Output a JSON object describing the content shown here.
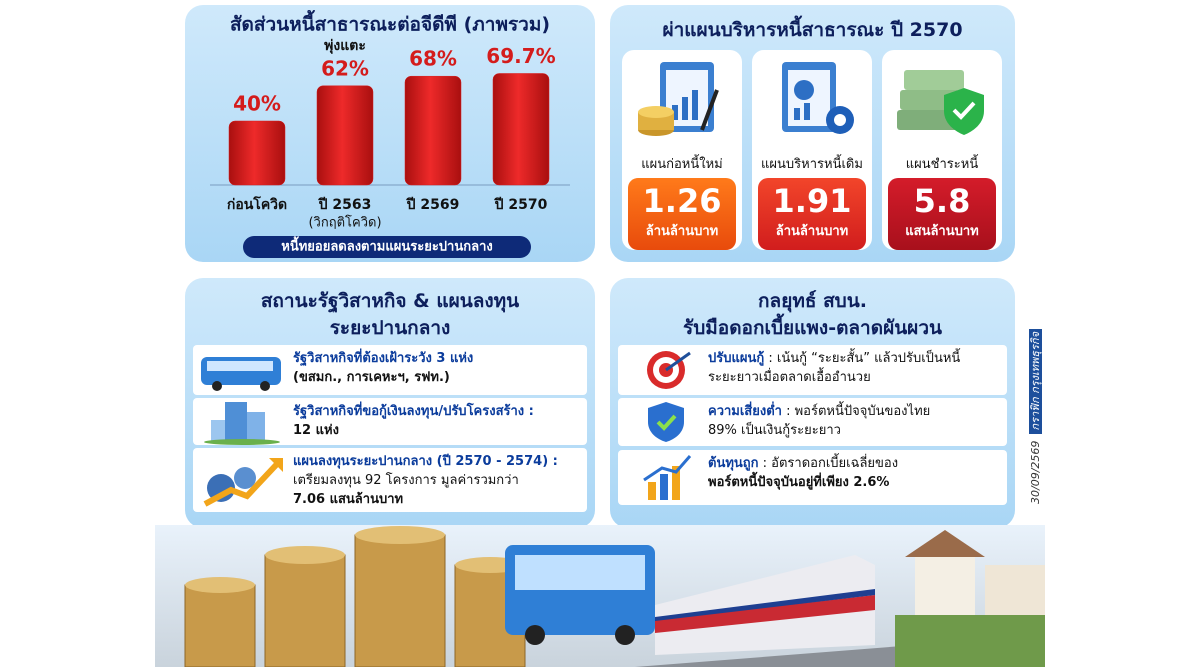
{
  "chart_data": {
    "type": "bar",
    "title": "สัดส่วนหนี้สาธารณะต่อจีดีพี (ภาพรวม)",
    "categories": [
      "ก่อนโควิด",
      "ปี 2563",
      "ปี 2569",
      "ปี 2570"
    ],
    "values": [
      40,
      62,
      68,
      69.7
    ],
    "value_labels": [
      "40%",
      "62%",
      "68%",
      "69.7%"
    ],
    "color": "#d91c1c",
    "annotations": [
      "พุ่งแตะ",
      "(วิกฤติโควิด)",
      "หนี้ทยอยลดลงตามแผนระยะปานกลาง"
    ]
  },
  "debt_plan": {
    "title": "ผ่าแผนบริหารหนี้สาธารณะ ปี 2570",
    "cards": [
      {
        "label": "แผนก่อหนี้ใหม่",
        "value": "1.26",
        "unit": "ล้านล้านบาท"
      },
      {
        "label": "แผนบริหารหนี้เดิม",
        "value": "1.91",
        "unit": "ล้านล้านบาท"
      },
      {
        "label": "แผนชำระหนี้",
        "value": "5.8",
        "unit": "แสนล้านบาท"
      }
    ]
  },
  "state_enterprises": {
    "title_lines": [
      "สถานะรัฐวิสาหกิจ & แผนลงทุน",
      "ระยะปานกลาง"
    ],
    "items": [
      {
        "lines": [
          "รัฐวิสาหกิจที่ต้องเฝ้าระวัง 3 แห่ง",
          "(ขสมก., การเคหะฯ, รฟท.)"
        ]
      },
      {
        "lines": [
          "รัฐวิสาหกิจที่ขอกู้เงินลงทุน/ปรับโครงสร้าง :",
          "12 แห่ง"
        ]
      },
      {
        "lines": [
          "แผนลงทุนระยะปานกลาง (ปี 2570 - 2574) :",
          "เตรียมลงทุน 92 โครงการ มูลค่ารวมกว่า",
          "7.06 แสนล้านบาท"
        ]
      }
    ]
  },
  "strategy": {
    "title_lines": [
      "กลยุทธ์ สบน.",
      "รับมือดอกเบี้ยแพง-ตลาดผันผวน"
    ],
    "items": [
      {
        "heading": "ปรับแผนกู้",
        "lines": [
          ": เน้นกู้ “ระยะสั้น” แล้วปรับเป็นหนี้",
          "ระยะยาวเมื่อตลาดเอื้ออำนวย"
        ]
      },
      {
        "heading": "ความเสี่ยงต่ำ",
        "lines": [
          ": พอร์ตหนี้ปัจจุบันของไทย",
          "89% เป็นเงินกู้ระยะยาว"
        ]
      },
      {
        "heading": "ต้นทุนถูก",
        "lines": [
          ": อัตราดอกเบี้ยเฉลี่ยของ",
          "พอร์ตหนี้ปัจจุบันอยู่ที่เพียง 2.6%"
        ]
      }
    ]
  },
  "credit": {
    "date": "30/09/2569",
    "source": "กราฟิก กรุงเทพธุรกิจ"
  }
}
